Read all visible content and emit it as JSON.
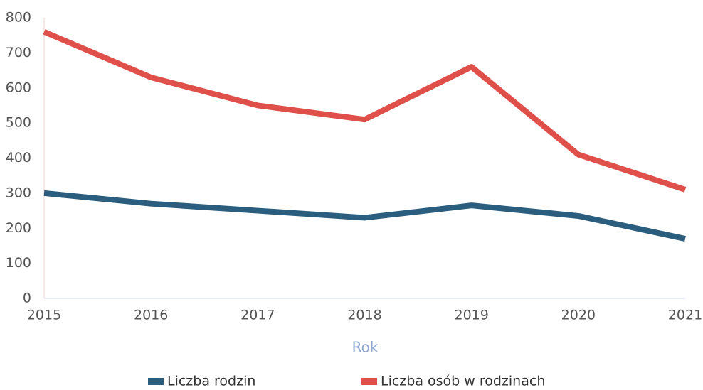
{
  "chart_data": {
    "type": "line",
    "x_label": "Rok",
    "categories": [
      "2015",
      "2016",
      "2017",
      "2018",
      "2019",
      "2020",
      "2021"
    ],
    "series": [
      {
        "name": "Liczba rodzin",
        "color": "#2b5d7e",
        "values": [
          300,
          270,
          250,
          230,
          265,
          235,
          170
        ]
      },
      {
        "name": "Liczba osób w rodzinach",
        "color": "#e0504b",
        "values": [
          760,
          630,
          550,
          510,
          660,
          410,
          310
        ]
      }
    ],
    "ylim": [
      0,
      800
    ],
    "yticks": [
      0,
      100,
      200,
      300,
      400,
      500,
      600,
      700,
      800
    ],
    "grid": false,
    "legend": "bottom"
  }
}
